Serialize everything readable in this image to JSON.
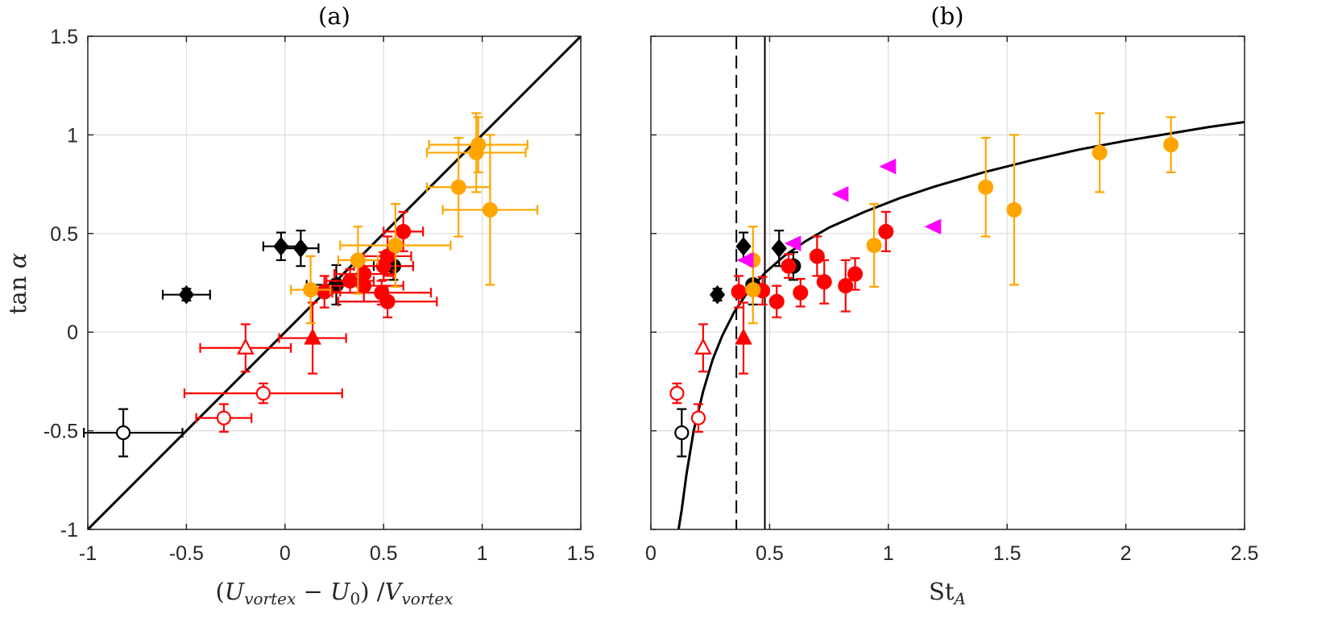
{
  "figure": {
    "background": "#ffffff"
  },
  "colors": {
    "black": "#000000",
    "red": "#ff0000",
    "orange": "#ffa500",
    "magenta": "#ff00ff",
    "grid": "#dcdcdc",
    "axis": "#262626"
  },
  "chart_data": [
    {
      "type": "scatter",
      "title": "(a)",
      "xlabel": "(U_vortex − U_0) / V_vortex",
      "ylabel": "tan α",
      "xlim": [
        -1,
        1.5
      ],
      "ylim": [
        -1,
        1.5
      ],
      "xticks": [
        -1,
        -0.5,
        0,
        0.5,
        1,
        1.5
      ],
      "xtick_labels": [
        "-1",
        "-0.5",
        "0",
        "0.5",
        "1",
        "1.5"
      ],
      "yticks": [
        -1,
        -0.5,
        0,
        0.5,
        1,
        1.5
      ],
      "ytick_labels": [
        "-1",
        "-0.5",
        "0",
        "0.5",
        "1",
        "1.5"
      ],
      "grid": true,
      "lines": [
        {
          "type": "identity",
          "x": [
            -1,
            1.5
          ],
          "y": [
            -1,
            1.5
          ],
          "color": "#000000",
          "style": "solid"
        }
      ],
      "series": [
        {
          "marker": "circle-open",
          "color": "#000000",
          "points": [
            {
              "x": -0.82,
              "y": -0.51,
              "xerr": [
                0.2,
                0.3
              ],
              "yerr": 0.12
            }
          ]
        },
        {
          "marker": "diamond",
          "color": "#000000",
          "points": [
            {
              "x": -0.5,
              "y": 0.19,
              "xerr": 0.12,
              "yerr": 0.03
            },
            {
              "x": -0.02,
              "y": 0.435,
              "xerr": 0.09,
              "yerr": 0.07
            },
            {
              "x": 0.08,
              "y": 0.425,
              "xerr": 0.09,
              "yerr": 0.09
            }
          ]
        },
        {
          "marker": "circle",
          "color": "#000000",
          "points": [
            {
              "x": 0.26,
              "y": 0.24,
              "xerr": 0.15,
              "yerr": 0.1
            },
            {
              "x": 0.55,
              "y": 0.335,
              "xerr": 0.1,
              "yerr": 0.07
            }
          ]
        },
        {
          "marker": "circle-open",
          "color": "#ff0000",
          "points": [
            {
              "x": -0.11,
              "y": -0.31,
              "xerr": 0.4,
              "yerr": 0.05
            },
            {
              "x": -0.31,
              "y": -0.435,
              "xerr": 0.14,
              "yerr": 0.07
            }
          ]
        },
        {
          "marker": "triangle-open",
          "color": "#ff0000",
          "points": [
            {
              "x": -0.2,
              "y": -0.08,
              "xerr": 0.23,
              "yerr": 0.12
            }
          ]
        },
        {
          "marker": "triangle",
          "color": "#ff0000",
          "points": [
            {
              "x": 0.14,
              "y": -0.03,
              "xerr": 0.17,
              "yerr": 0.18
            }
          ]
        },
        {
          "marker": "circle",
          "color": "#ff0000",
          "points": [
            {
              "x": 0.2,
              "y": 0.205,
              "xerr": 0.08,
              "yerr": 0.08
            },
            {
              "x": 0.33,
              "y": 0.26,
              "xerr": 0.12,
              "yerr": 0.06
            },
            {
              "x": 0.4,
              "y": 0.295,
              "xerr": 0.15,
              "yerr": 0.07
            },
            {
              "x": 0.4,
              "y": 0.235,
              "xerr": 0.2,
              "yerr": 0.08
            },
            {
              "x": 0.49,
              "y": 0.2,
              "xerr": 0.25,
              "yerr": 0.06
            },
            {
              "x": 0.52,
              "y": 0.155,
              "xerr": 0.25,
              "yerr": 0.08
            },
            {
              "x": 0.5,
              "y": 0.335,
              "xerr": 0.15,
              "yerr": 0.07
            },
            {
              "x": 0.52,
              "y": 0.385,
              "xerr": 0.12,
              "yerr": 0.1
            },
            {
              "x": 0.6,
              "y": 0.51,
              "xerr": 0.1,
              "yerr": 0.1
            }
          ]
        },
        {
          "marker": "circle",
          "color": "#ffa500",
          "points": [
            {
              "x": 0.13,
              "y": 0.215,
              "xerr": 0.1,
              "yerr": 0.17
            },
            {
              "x": 0.37,
              "y": 0.365,
              "xerr": 0.1,
              "yerr": 0.17
            },
            {
              "x": 0.56,
              "y": 0.44,
              "xerr": 0.28,
              "yerr": 0.21
            },
            {
              "x": 0.88,
              "y": 0.735,
              "xerr": 0.16,
              "yerr": 0.25
            },
            {
              "x": 0.97,
              "y": 0.91,
              "xerr": 0.25,
              "yerr": 0.2
            },
            {
              "x": 0.98,
              "y": 0.95,
              "xerr": 0.25,
              "yerr": 0.14
            },
            {
              "x": 1.04,
              "y": 0.62,
              "xerr": 0.24,
              "yerr": 0.38
            }
          ]
        }
      ]
    },
    {
      "type": "scatter",
      "title": "(b)",
      "xlabel": "St_A",
      "ylabel": "",
      "xlim": [
        0,
        2.5
      ],
      "ylim": [
        -1,
        1.5
      ],
      "xticks": [
        0,
        0.5,
        1,
        1.5,
        2,
        2.5
      ],
      "xtick_labels": [
        "0",
        "0.5",
        "1",
        "1.5",
        "2",
        "2.5"
      ],
      "yticks": [
        -1,
        -0.5,
        0,
        0.5,
        1,
        1.5
      ],
      "grid": true,
      "lines": [
        {
          "type": "fit-curve",
          "x": [
            0.11,
            0.13,
            0.15,
            0.18,
            0.22,
            0.26,
            0.3,
            0.35,
            0.4,
            0.48,
            0.56,
            0.65,
            0.75,
            0.9,
            1.05,
            1.2,
            1.4,
            1.6,
            1.8,
            2.0,
            2.2,
            2.35,
            2.5
          ],
          "y": [
            -1.05,
            -0.9,
            -0.72,
            -0.5,
            -0.3,
            -0.14,
            -0.02,
            0.1,
            0.19,
            0.3,
            0.385,
            0.46,
            0.53,
            0.61,
            0.68,
            0.74,
            0.81,
            0.87,
            0.925,
            0.97,
            1.01,
            1.04,
            1.065
          ],
          "color": "#000000",
          "style": "solid"
        },
        {
          "type": "vertical",
          "x": 0.36,
          "color": "#000000",
          "style": "dashed"
        },
        {
          "type": "vertical",
          "x": 0.48,
          "color": "#000000",
          "style": "solid"
        }
      ],
      "series": [
        {
          "marker": "circle-open",
          "color": "#000000",
          "points": [
            {
              "x": 0.13,
              "y": -0.51,
              "yerr": 0.12
            }
          ]
        },
        {
          "marker": "diamond",
          "color": "#000000",
          "points": [
            {
              "x": 0.28,
              "y": 0.19,
              "yerr": 0.03
            },
            {
              "x": 0.39,
              "y": 0.435,
              "yerr": 0.07
            },
            {
              "x": 0.54,
              "y": 0.425,
              "yerr": 0.09
            }
          ]
        },
        {
          "marker": "circle",
          "color": "#000000",
          "points": [
            {
              "x": 0.43,
              "y": 0.24,
              "yerr": 0.1
            },
            {
              "x": 0.6,
              "y": 0.335,
              "yerr": 0.07
            }
          ]
        },
        {
          "marker": "circle-open",
          "color": "#ff0000",
          "points": [
            {
              "x": 0.11,
              "y": -0.31,
              "yerr": 0.05
            },
            {
              "x": 0.2,
              "y": -0.435,
              "yerr": 0.07
            }
          ]
        },
        {
          "marker": "triangle-open",
          "color": "#ff0000",
          "points": [
            {
              "x": 0.22,
              "y": -0.08,
              "yerr": 0.12
            }
          ]
        },
        {
          "marker": "triangle",
          "color": "#ff0000",
          "points": [
            {
              "x": 0.39,
              "y": -0.03,
              "yerr": 0.18
            }
          ]
        },
        {
          "marker": "circle",
          "color": "#ff0000",
          "points": [
            {
              "x": 0.37,
              "y": 0.205,
              "yerr": 0.08
            },
            {
              "x": 0.47,
              "y": 0.21,
              "yerr": 0.07
            },
            {
              "x": 0.53,
              "y": 0.155,
              "yerr": 0.08
            },
            {
              "x": 0.58,
              "y": 0.335,
              "yerr": 0.06
            },
            {
              "x": 0.63,
              "y": 0.2,
              "yerr": 0.07
            },
            {
              "x": 0.7,
              "y": 0.385,
              "yerr": 0.1
            },
            {
              "x": 0.73,
              "y": 0.255,
              "yerr": 0.11
            },
            {
              "x": 0.82,
              "y": 0.235,
              "yerr": 0.13
            },
            {
              "x": 0.86,
              "y": 0.295,
              "yerr": 0.08
            },
            {
              "x": 0.99,
              "y": 0.51,
              "yerr": 0.1
            }
          ]
        },
        {
          "marker": "circle",
          "color": "#ffa500",
          "points": [
            {
              "x": 0.43,
              "y": 0.215,
              "yerr": 0.17
            },
            {
              "x": 0.43,
              "y": 0.365,
              "yerr": 0.17
            },
            {
              "x": 0.94,
              "y": 0.44,
              "yerr": 0.21
            },
            {
              "x": 1.41,
              "y": 0.735,
              "yerr": 0.25
            },
            {
              "x": 1.53,
              "y": 0.62,
              "yerr": 0.38
            },
            {
              "x": 1.89,
              "y": 0.91,
              "yerr": 0.2
            },
            {
              "x": 2.19,
              "y": 0.95,
              "yerr": 0.14
            }
          ]
        },
        {
          "marker": "triangle-left",
          "color": "#ff00ff",
          "points": [
            {
              "x": 0.4,
              "y": 0.365
            },
            {
              "x": 0.6,
              "y": 0.45
            },
            {
              "x": 0.8,
              "y": 0.7
            },
            {
              "x": 1.0,
              "y": 0.84
            },
            {
              "x": 1.19,
              "y": 0.535
            }
          ]
        }
      ]
    }
  ]
}
